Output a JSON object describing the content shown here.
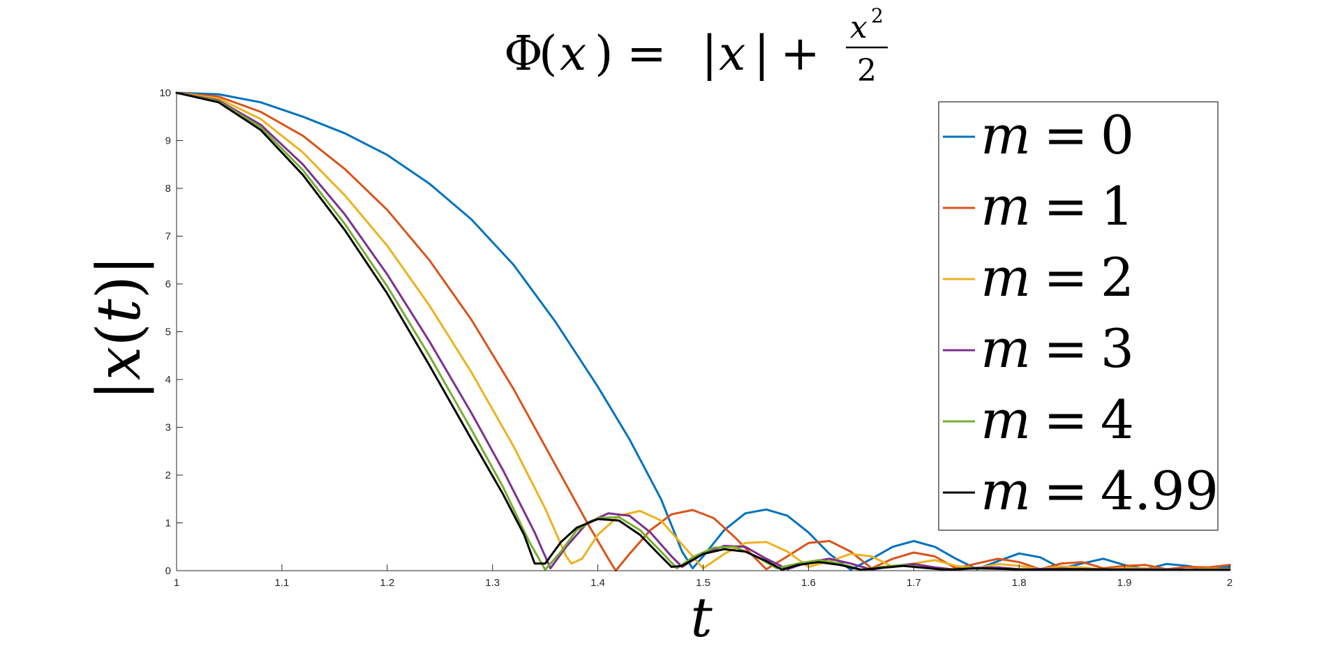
{
  "chart_data": {
    "type": "line",
    "title": {
      "lhs_func": "Φ",
      "lhs_open": "(",
      "lhs_var": "x",
      "lhs_close": ")",
      "equals": "=",
      "abs_open": "|",
      "abs_var": "x",
      "abs_close": "|",
      "plus": "+",
      "frac_num_var": "x",
      "frac_num_exp": "2",
      "frac_den": "2"
    },
    "xlabel": "t",
    "ylabel": {
      "bar_open": "|",
      "var": "x",
      "paren_open": "(",
      "arg": "t",
      "paren_close": ")",
      "bar_close": "|"
    },
    "xlim": [
      1,
      2
    ],
    "ylim": [
      0,
      10
    ],
    "x_ticks": [
      "1",
      "1.1",
      "1.2",
      "1.3",
      "1.4",
      "1.5",
      "1.6",
      "1.7",
      "1.8",
      "1.9",
      "2"
    ],
    "y_ticks": [
      "0",
      "1",
      "2",
      "3",
      "4",
      "5",
      "6",
      "7",
      "8",
      "9",
      "10"
    ],
    "grid": false,
    "legend_placement": "top-right",
    "series": [
      {
        "name": {
          "var": "m",
          "eq": "=",
          "value": "0"
        },
        "color": "#0072BD",
        "points": [
          [
            1.0,
            10
          ],
          [
            1.04,
            9.97
          ],
          [
            1.08,
            9.8
          ],
          [
            1.12,
            9.5
          ],
          [
            1.16,
            9.15
          ],
          [
            1.2,
            8.7
          ],
          [
            1.24,
            8.1
          ],
          [
            1.28,
            7.35
          ],
          [
            1.32,
            6.4
          ],
          [
            1.36,
            5.2
          ],
          [
            1.4,
            3.85
          ],
          [
            1.43,
            2.75
          ],
          [
            1.46,
            1.5
          ],
          [
            1.48,
            0.4
          ],
          [
            1.49,
            0.05
          ],
          [
            1.5,
            0.3
          ],
          [
            1.52,
            0.85
          ],
          [
            1.54,
            1.2
          ],
          [
            1.56,
            1.28
          ],
          [
            1.58,
            1.15
          ],
          [
            1.6,
            0.8
          ],
          [
            1.62,
            0.35
          ],
          [
            1.64,
            0.02
          ],
          [
            1.66,
            0.25
          ],
          [
            1.68,
            0.5
          ],
          [
            1.7,
            0.62
          ],
          [
            1.72,
            0.5
          ],
          [
            1.74,
            0.25
          ],
          [
            1.76,
            0.03
          ],
          [
            1.78,
            0.2
          ],
          [
            1.8,
            0.36
          ],
          [
            1.82,
            0.28
          ],
          [
            1.84,
            0.05
          ],
          [
            1.86,
            0.15
          ],
          [
            1.88,
            0.25
          ],
          [
            1.9,
            0.12
          ],
          [
            1.92,
            0.03
          ],
          [
            1.94,
            0.14
          ],
          [
            1.96,
            0.1
          ],
          [
            1.98,
            0.02
          ],
          [
            2.0,
            0.08
          ]
        ]
      },
      {
        "name": {
          "var": "m",
          "eq": "=",
          "value": "1"
        },
        "color": "#D95319",
        "points": [
          [
            1.0,
            10
          ],
          [
            1.04,
            9.92
          ],
          [
            1.08,
            9.6
          ],
          [
            1.12,
            9.1
          ],
          [
            1.16,
            8.4
          ],
          [
            1.2,
            7.55
          ],
          [
            1.24,
            6.5
          ],
          [
            1.28,
            5.25
          ],
          [
            1.32,
            3.8
          ],
          [
            1.36,
            2.2
          ],
          [
            1.39,
            1.0
          ],
          [
            1.41,
            0.25
          ],
          [
            1.417,
            0.0
          ],
          [
            1.43,
            0.35
          ],
          [
            1.45,
            0.85
          ],
          [
            1.47,
            1.18
          ],
          [
            1.49,
            1.27
          ],
          [
            1.51,
            1.1
          ],
          [
            1.53,
            0.7
          ],
          [
            1.55,
            0.25
          ],
          [
            1.56,
            0.03
          ],
          [
            1.58,
            0.3
          ],
          [
            1.6,
            0.58
          ],
          [
            1.62,
            0.62
          ],
          [
            1.64,
            0.4
          ],
          [
            1.66,
            0.05
          ],
          [
            1.68,
            0.25
          ],
          [
            1.7,
            0.38
          ],
          [
            1.72,
            0.3
          ],
          [
            1.74,
            0.05
          ],
          [
            1.76,
            0.15
          ],
          [
            1.78,
            0.25
          ],
          [
            1.8,
            0.18
          ],
          [
            1.82,
            0.03
          ],
          [
            1.84,
            0.15
          ],
          [
            1.86,
            0.18
          ],
          [
            1.88,
            0.05
          ],
          [
            1.9,
            0.1
          ],
          [
            1.92,
            0.12
          ],
          [
            1.94,
            0.03
          ],
          [
            1.96,
            0.08
          ],
          [
            1.98,
            0.07
          ],
          [
            2.0,
            0.12
          ]
        ]
      },
      {
        "name": {
          "var": "m",
          "eq": "=",
          "value": "2"
        },
        "color": "#EDB120",
        "points": [
          [
            1.0,
            10
          ],
          [
            1.04,
            9.88
          ],
          [
            1.08,
            9.45
          ],
          [
            1.12,
            8.75
          ],
          [
            1.16,
            7.85
          ],
          [
            1.2,
            6.8
          ],
          [
            1.24,
            5.55
          ],
          [
            1.28,
            4.15
          ],
          [
            1.32,
            2.6
          ],
          [
            1.35,
            1.3
          ],
          [
            1.37,
            0.3
          ],
          [
            1.375,
            0.15
          ],
          [
            1.385,
            0.25
          ],
          [
            1.4,
            0.75
          ],
          [
            1.42,
            1.15
          ],
          [
            1.44,
            1.25
          ],
          [
            1.46,
            1.05
          ],
          [
            1.48,
            0.55
          ],
          [
            1.5,
            0.05
          ],
          [
            1.52,
            0.35
          ],
          [
            1.54,
            0.58
          ],
          [
            1.56,
            0.6
          ],
          [
            1.58,
            0.4
          ],
          [
            1.6,
            0.08
          ],
          [
            1.62,
            0.2
          ],
          [
            1.64,
            0.35
          ],
          [
            1.66,
            0.3
          ],
          [
            1.68,
            0.08
          ],
          [
            1.7,
            0.15
          ],
          [
            1.72,
            0.22
          ],
          [
            1.74,
            0.1
          ],
          [
            1.76,
            0.05
          ],
          [
            1.78,
            0.14
          ],
          [
            1.8,
            0.1
          ],
          [
            1.82,
            0.03
          ],
          [
            1.84,
            0.09
          ],
          [
            1.86,
            0.07
          ],
          [
            1.88,
            0.02
          ],
          [
            1.9,
            0.06
          ],
          [
            1.92,
            0.05
          ],
          [
            1.95,
            0.02
          ],
          [
            1.98,
            0.04
          ],
          [
            2.0,
            0.03
          ]
        ]
      },
      {
        "name": {
          "var": "m",
          "eq": "=",
          "value": "3"
        },
        "color": "#7E2F8E",
        "points": [
          [
            1.0,
            10
          ],
          [
            1.04,
            9.84
          ],
          [
            1.08,
            9.33
          ],
          [
            1.12,
            8.5
          ],
          [
            1.16,
            7.45
          ],
          [
            1.2,
            6.2
          ],
          [
            1.24,
            4.8
          ],
          [
            1.28,
            3.3
          ],
          [
            1.31,
            2.1
          ],
          [
            1.34,
            0.8
          ],
          [
            1.355,
            0.05
          ],
          [
            1.37,
            0.5
          ],
          [
            1.39,
            1.0
          ],
          [
            1.41,
            1.2
          ],
          [
            1.43,
            1.15
          ],
          [
            1.45,
            0.8
          ],
          [
            1.47,
            0.3
          ],
          [
            1.48,
            0.08
          ],
          [
            1.5,
            0.35
          ],
          [
            1.52,
            0.52
          ],
          [
            1.54,
            0.5
          ],
          [
            1.56,
            0.25
          ],
          [
            1.58,
            0.03
          ],
          [
            1.6,
            0.18
          ],
          [
            1.62,
            0.25
          ],
          [
            1.64,
            0.15
          ],
          [
            1.66,
            0.02
          ],
          [
            1.68,
            0.1
          ],
          [
            1.7,
            0.14
          ],
          [
            1.72,
            0.07
          ],
          [
            1.74,
            0.02
          ],
          [
            1.76,
            0.06
          ],
          [
            1.78,
            0.07
          ],
          [
            1.8,
            0.03
          ],
          [
            1.84,
            0.04
          ],
          [
            1.88,
            0.02
          ],
          [
            1.92,
            0.03
          ],
          [
            1.96,
            0.02
          ],
          [
            2.0,
            0.02
          ]
        ]
      },
      {
        "name": {
          "var": "m",
          "eq": "=",
          "value": "4"
        },
        "color": "#77AC30",
        "points": [
          [
            1.0,
            10
          ],
          [
            1.04,
            9.82
          ],
          [
            1.08,
            9.28
          ],
          [
            1.12,
            8.38
          ],
          [
            1.16,
            7.25
          ],
          [
            1.2,
            5.95
          ],
          [
            1.24,
            4.5
          ],
          [
            1.28,
            2.95
          ],
          [
            1.31,
            1.75
          ],
          [
            1.335,
            0.6
          ],
          [
            1.35,
            0.02
          ],
          [
            1.365,
            0.4
          ],
          [
            1.38,
            0.85
          ],
          [
            1.4,
            1.1
          ],
          [
            1.42,
            1.12
          ],
          [
            1.44,
            0.85
          ],
          [
            1.46,
            0.4
          ],
          [
            1.475,
            0.05
          ],
          [
            1.49,
            0.28
          ],
          [
            1.51,
            0.48
          ],
          [
            1.53,
            0.5
          ],
          [
            1.55,
            0.3
          ],
          [
            1.57,
            0.05
          ],
          [
            1.59,
            0.15
          ],
          [
            1.61,
            0.22
          ],
          [
            1.63,
            0.15
          ],
          [
            1.65,
            0.02
          ],
          [
            1.67,
            0.08
          ],
          [
            1.69,
            0.12
          ],
          [
            1.71,
            0.06
          ],
          [
            1.73,
            0.02
          ],
          [
            1.75,
            0.05
          ],
          [
            1.78,
            0.04
          ],
          [
            1.82,
            0.02
          ],
          [
            1.86,
            0.03
          ],
          [
            1.9,
            0.02
          ],
          [
            1.95,
            0.02
          ],
          [
            2.0,
            0.02
          ]
        ]
      },
      {
        "name": {
          "var": "m",
          "eq": "=",
          "value": "4.99"
        },
        "color": "#000000",
        "points": [
          [
            1.0,
            10
          ],
          [
            1.04,
            9.8
          ],
          [
            1.08,
            9.22
          ],
          [
            1.12,
            8.28
          ],
          [
            1.16,
            7.12
          ],
          [
            1.2,
            5.8
          ],
          [
            1.24,
            4.3
          ],
          [
            1.28,
            2.75
          ],
          [
            1.31,
            1.6
          ],
          [
            1.33,
            0.75
          ],
          [
            1.34,
            0.15
          ],
          [
            1.35,
            0.15
          ],
          [
            1.365,
            0.6
          ],
          [
            1.38,
            0.9
          ],
          [
            1.4,
            1.08
          ],
          [
            1.42,
            1.05
          ],
          [
            1.44,
            0.75
          ],
          [
            1.46,
            0.3
          ],
          [
            1.47,
            0.08
          ],
          [
            1.48,
            0.1
          ],
          [
            1.5,
            0.35
          ],
          [
            1.52,
            0.45
          ],
          [
            1.54,
            0.4
          ],
          [
            1.56,
            0.2
          ],
          [
            1.575,
            0.02
          ],
          [
            1.59,
            0.12
          ],
          [
            1.61,
            0.18
          ],
          [
            1.63,
            0.12
          ],
          [
            1.65,
            0.02
          ],
          [
            1.67,
            0.06
          ],
          [
            1.69,
            0.1
          ],
          [
            1.71,
            0.06
          ],
          [
            1.73,
            0.02
          ],
          [
            1.76,
            0.05
          ],
          [
            1.78,
            0.04
          ],
          [
            1.81,
            0.02
          ],
          [
            1.86,
            0.03
          ],
          [
            1.92,
            0.02
          ],
          [
            1.96,
            0.02
          ],
          [
            2.0,
            0.02
          ]
        ]
      }
    ]
  }
}
